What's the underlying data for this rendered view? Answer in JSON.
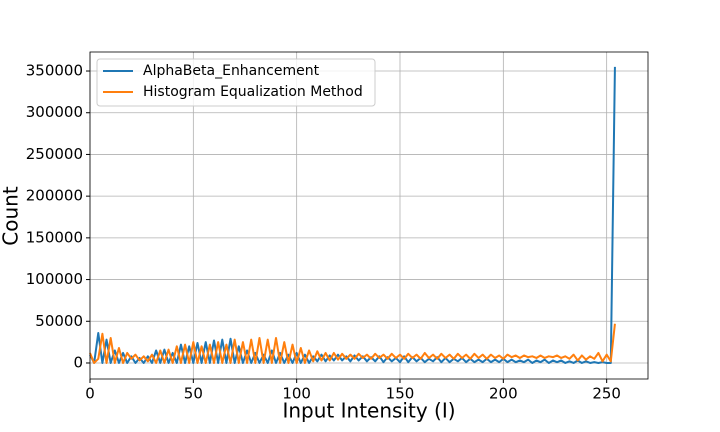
{
  "chart_data": {
    "type": "line",
    "xlabel": "Input Intensity (I)",
    "ylabel": "Count",
    "x": [
      0,
      2,
      4,
      6,
      8,
      10,
      12,
      14,
      16,
      18,
      20,
      22,
      24,
      26,
      28,
      30,
      32,
      34,
      36,
      38,
      40,
      42,
      44,
      46,
      48,
      50,
      52,
      54,
      56,
      58,
      60,
      62,
      64,
      66,
      68,
      70,
      72,
      74,
      76,
      78,
      80,
      82,
      84,
      86,
      88,
      90,
      92,
      94,
      96,
      98,
      100,
      102,
      104,
      106,
      108,
      110,
      112,
      114,
      116,
      118,
      120,
      122,
      124,
      126,
      128,
      130,
      132,
      134,
      136,
      138,
      140,
      142,
      144,
      146,
      148,
      150,
      152,
      154,
      156,
      158,
      160,
      162,
      164,
      166,
      168,
      170,
      172,
      174,
      176,
      178,
      180,
      182,
      184,
      186,
      188,
      190,
      192,
      194,
      196,
      198,
      200,
      202,
      204,
      206,
      208,
      210,
      212,
      214,
      216,
      218,
      220,
      222,
      224,
      226,
      228,
      230,
      232,
      234,
      236,
      238,
      240,
      242,
      244,
      246,
      248,
      250,
      252,
      254
    ],
    "series": [
      {
        "name": "AlphaBeta_Enhancement",
        "color": "#1f77b4",
        "values": [
          10000,
          0,
          36000,
          0,
          28000,
          0,
          15000,
          0,
          12000,
          0,
          8000,
          0,
          6000,
          0,
          8000,
          0,
          15000,
          0,
          16000,
          0,
          12000,
          0,
          22000,
          0,
          20000,
          0,
          24000,
          0,
          25000,
          0,
          27000,
          0,
          28000,
          0,
          29000,
          0,
          20000,
          0,
          15000,
          0,
          12000,
          0,
          10000,
          0,
          15000,
          0,
          12000,
          0,
          10000,
          0,
          12000,
          0,
          10000,
          0,
          8000,
          2000,
          10000,
          2000,
          9000,
          3000,
          10000,
          3000,
          8000,
          2000,
          9000,
          3000,
          8000,
          2000,
          7000,
          2000,
          8000,
          1000,
          7000,
          2000,
          6000,
          1000,
          8000,
          1000,
          7000,
          2000,
          6000,
          1000,
          5000,
          2000,
          7000,
          1000,
          6000,
          1000,
          5000,
          2000,
          6000,
          1000,
          5000,
          1000,
          4000,
          1000,
          5000,
          1000,
          4000,
          1000,
          5000,
          1000,
          4000,
          1000,
          3000,
          1000,
          4000,
          0,
          3000,
          1000,
          4000,
          0,
          3000,
          1000,
          3000,
          0,
          2000,
          0,
          3000,
          0,
          2000,
          0,
          1000,
          0,
          1000,
          0,
          0,
          355000
        ]
      },
      {
        "name": "Histogram Equalization Method",
        "color": "#ff7f0e",
        "values": [
          12000,
          0,
          5000,
          35000,
          0,
          30000,
          0,
          18000,
          0,
          12000,
          5000,
          10000,
          3000,
          8000,
          2000,
          10000,
          0,
          15000,
          0,
          16000,
          0,
          20000,
          0,
          22000,
          0,
          25000,
          0,
          20000,
          0,
          22000,
          0,
          25000,
          0,
          22000,
          0,
          28000,
          0,
          25000,
          0,
          28000,
          0,
          30000,
          0,
          28000,
          0,
          30000,
          0,
          25000,
          0,
          22000,
          0,
          18000,
          0,
          15000,
          2000,
          14000,
          3000,
          12000,
          3000,
          12000,
          4000,
          11000,
          5000,
          10000,
          5000,
          11000,
          6000,
          10000,
          5000,
          11000,
          6000,
          10000,
          5000,
          11000,
          6000,
          10000,
          5000,
          11000,
          6000,
          10000,
          5000,
          12000,
          6000,
          10000,
          5000,
          11000,
          6000,
          10000,
          5000,
          11000,
          6000,
          10000,
          5000,
          11000,
          6000,
          10000,
          5000,
          10000,
          6000,
          9000,
          5000,
          10000,
          7000,
          9000,
          6000,
          9000,
          7000,
          8000,
          6000,
          9000,
          6000,
          8000,
          7000,
          9000,
          6000,
          8000,
          5000,
          10000,
          3000,
          9000,
          4000,
          8000,
          5000,
          12000,
          2000,
          10000,
          2000,
          47000
        ]
      }
    ],
    "xlim": [
      0,
      270
    ],
    "ylim": [
      -19200,
      372800
    ],
    "xticks": [
      0,
      50,
      100,
      150,
      200,
      250
    ],
    "yticks": [
      0,
      50000,
      100000,
      150000,
      200000,
      250000,
      300000,
      350000
    ],
    "grid": true,
    "legend": "upper left"
  }
}
